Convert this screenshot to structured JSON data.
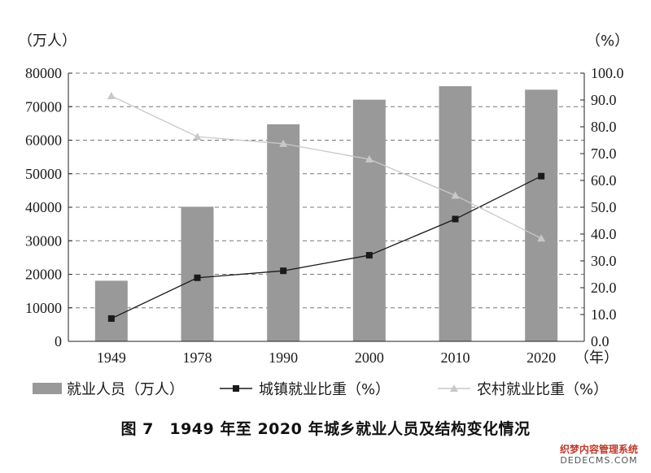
{
  "chart_data": {
    "type": "bar+line",
    "title": "图 7　1949 年至 2020 年城乡就业人员及结构变化情况",
    "categories": [
      "1949",
      "1978",
      "1990",
      "2000",
      "2010",
      "2020"
    ],
    "x_unit": "（年）",
    "y_left": {
      "unit": "（万人）",
      "min": 0,
      "max": 80000,
      "step": 10000,
      "ticks": [
        "0",
        "10000",
        "20000",
        "30000",
        "40000",
        "50000",
        "60000",
        "70000",
        "80000"
      ]
    },
    "y_right": {
      "unit": "（%）",
      "min": 0,
      "max": 100,
      "step": 10,
      "ticks": [
        "0.0",
        "10.0",
        "20.0",
        "30.0",
        "40.0",
        "50.0",
        "60.0",
        "70.0",
        "80.0",
        "90.0",
        "100.0"
      ]
    },
    "grid": "horizontal-dashed",
    "legend_position": "bottom",
    "series": [
      {
        "name": "就业人员（万人）",
        "type": "bar",
        "axis": "left",
        "color": "#999999",
        "values": [
          18082,
          40152,
          64749,
          72085,
          76105,
          75064
        ]
      },
      {
        "name": "城镇就业比重（%）",
        "type": "line",
        "axis": "right",
        "color": "#1a1a1a",
        "marker": "square",
        "values": [
          8.5,
          23.7,
          26.3,
          32.1,
          45.6,
          61.6
        ]
      },
      {
        "name": "农村就业比重（%）",
        "type": "line",
        "axis": "right",
        "color": "#c8c8c8",
        "marker": "triangle",
        "values": [
          91.5,
          76.3,
          73.7,
          67.9,
          54.4,
          38.4
        ]
      }
    ]
  },
  "watermark": {
    "line1": "织梦内容管理系统",
    "line2": "DEDECMS.COM"
  }
}
